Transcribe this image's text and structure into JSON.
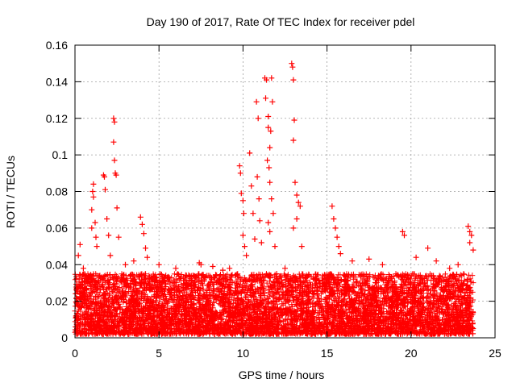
{
  "chart_data": {
    "type": "scatter",
    "title": "Day 190 of 2017, Rate Of TEC Index for receiver pdel",
    "xlabel": "GPS time / hours",
    "ylabel": "ROTI / TECUs",
    "xlim": [
      0,
      25
    ],
    "ylim": [
      0,
      0.16
    ],
    "xticks": [
      0,
      5,
      10,
      15,
      20,
      25
    ],
    "xtick_labels": [
      "0",
      "5",
      "10",
      "15",
      "20",
      "25"
    ],
    "yticks": [
      0,
      0.02,
      0.04,
      0.06,
      0.08,
      0.1,
      0.12,
      0.14,
      0.16
    ],
    "ytick_labels": [
      "0",
      "0.02",
      "0.04",
      "0.06",
      "0.08",
      "0.1",
      "0.12",
      "0.14",
      "0.16"
    ],
    "grid": true,
    "marker": "+",
    "color": "#ff0000",
    "series": [
      {
        "name": "ROTI",
        "points": [
          [
            0.2,
            0.045
          ],
          [
            0.3,
            0.051
          ],
          [
            0.5,
            0.038
          ],
          [
            0.8,
            0.032
          ],
          [
            1.0,
            0.06
          ],
          [
            1.0,
            0.07
          ],
          [
            1.05,
            0.08
          ],
          [
            1.1,
            0.084
          ],
          [
            1.1,
            0.077
          ],
          [
            1.2,
            0.063
          ],
          [
            1.25,
            0.055
          ],
          [
            1.3,
            0.05
          ],
          [
            1.7,
            0.089
          ],
          [
            1.75,
            0.088
          ],
          [
            1.8,
            0.081
          ],
          [
            1.9,
            0.065
          ],
          [
            2.0,
            0.056
          ],
          [
            2.1,
            0.045
          ],
          [
            2.3,
            0.12
          ],
          [
            2.35,
            0.118
          ],
          [
            2.3,
            0.107
          ],
          [
            2.35,
            0.097
          ],
          [
            2.4,
            0.09
          ],
          [
            2.45,
            0.089
          ],
          [
            2.5,
            0.071
          ],
          [
            2.6,
            0.055
          ],
          [
            3.0,
            0.04
          ],
          [
            3.5,
            0.042
          ],
          [
            3.9,
            0.066
          ],
          [
            4.0,
            0.062
          ],
          [
            4.1,
            0.057
          ],
          [
            4.2,
            0.049
          ],
          [
            4.3,
            0.044
          ],
          [
            5.0,
            0.04
          ],
          [
            6.0,
            0.038
          ],
          [
            7.4,
            0.041
          ],
          [
            7.5,
            0.04
          ],
          [
            8.2,
            0.039
          ],
          [
            8.8,
            0.037
          ],
          [
            9.2,
            0.038
          ],
          [
            9.8,
            0.094
          ],
          [
            9.85,
            0.09
          ],
          [
            9.9,
            0.079
          ],
          [
            10.0,
            0.075
          ],
          [
            10.05,
            0.068
          ],
          [
            10.0,
            0.056
          ],
          [
            10.1,
            0.05
          ],
          [
            10.2,
            0.045
          ],
          [
            10.4,
            0.101
          ],
          [
            10.5,
            0.083
          ],
          [
            10.6,
            0.068
          ],
          [
            10.7,
            0.054
          ],
          [
            10.8,
            0.129
          ],
          [
            10.9,
            0.12
          ],
          [
            10.85,
            0.088
          ],
          [
            10.95,
            0.076
          ],
          [
            11.0,
            0.064
          ],
          [
            11.1,
            0.052
          ],
          [
            11.3,
            0.142
          ],
          [
            11.4,
            0.141
          ],
          [
            11.35,
            0.131
          ],
          [
            11.5,
            0.121
          ],
          [
            11.5,
            0.115
          ],
          [
            11.6,
            0.104
          ],
          [
            11.45,
            0.097
          ],
          [
            11.7,
            0.142
          ],
          [
            11.75,
            0.129
          ],
          [
            11.65,
            0.113
          ],
          [
            11.55,
            0.093
          ],
          [
            11.6,
            0.085
          ],
          [
            11.7,
            0.076
          ],
          [
            11.8,
            0.068
          ],
          [
            11.5,
            0.063
          ],
          [
            11.6,
            0.058
          ],
          [
            11.9,
            0.05
          ],
          [
            12.0,
            0.035
          ],
          [
            12.5,
            0.038
          ],
          [
            12.9,
            0.15
          ],
          [
            12.95,
            0.148
          ],
          [
            13.0,
            0.141
          ],
          [
            13.05,
            0.119
          ],
          [
            13.0,
            0.108
          ],
          [
            13.1,
            0.085
          ],
          [
            13.2,
            0.078
          ],
          [
            13.3,
            0.074
          ],
          [
            13.4,
            0.072
          ],
          [
            13.2,
            0.065
          ],
          [
            13.0,
            0.06
          ],
          [
            13.5,
            0.05
          ],
          [
            15.3,
            0.072
          ],
          [
            15.4,
            0.065
          ],
          [
            15.5,
            0.06
          ],
          [
            15.6,
            0.055
          ],
          [
            15.7,
            0.05
          ],
          [
            15.8,
            0.046
          ],
          [
            16.5,
            0.042
          ],
          [
            17.5,
            0.043
          ],
          [
            18.3,
            0.04
          ],
          [
            19.5,
            0.058
          ],
          [
            19.6,
            0.056
          ],
          [
            20.3,
            0.044
          ],
          [
            21.0,
            0.049
          ],
          [
            21.5,
            0.042
          ],
          [
            22.3,
            0.038
          ],
          [
            22.8,
            0.04
          ],
          [
            23.4,
            0.061
          ],
          [
            23.5,
            0.058
          ],
          [
            23.6,
            0.056
          ],
          [
            23.5,
            0.052
          ],
          [
            23.7,
            0.048
          ]
        ]
      }
    ],
    "dense_band": {
      "description": "dense red band of points across the full time range",
      "x_range": [
        0,
        23.7
      ],
      "y_range": [
        0.002,
        0.035
      ]
    }
  }
}
